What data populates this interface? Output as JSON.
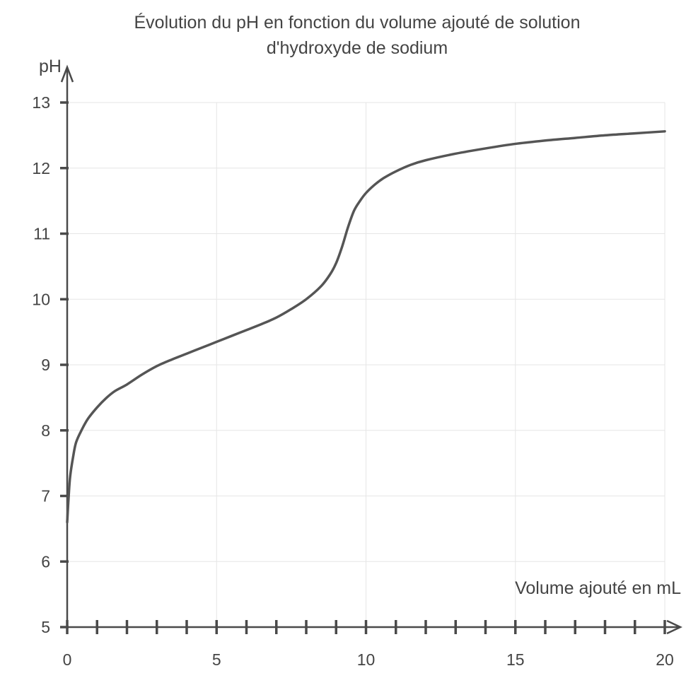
{
  "chart_data": {
    "type": "line",
    "title_line1": "Évolution du pH en fonction du volume ajouté de solution",
    "title_line2": "d'hydroxyde de sodium",
    "xlabel": "Volume ajouté en mL",
    "ylabel": "pH",
    "xlim": [
      0,
      20
    ],
    "ylim": [
      5,
      13
    ],
    "x_major_ticks": [
      0,
      5,
      10,
      15,
      20
    ],
    "x_minor_tick_step": 1,
    "y_ticks": [
      5,
      6,
      7,
      8,
      9,
      10,
      11,
      12,
      13
    ],
    "grid": true,
    "series": [
      {
        "color": "#555555",
        "points": [
          [
            0,
            6.6
          ],
          [
            0.05,
            7.0
          ],
          [
            0.1,
            7.3
          ],
          [
            0.2,
            7.6
          ],
          [
            0.3,
            7.82
          ],
          [
            0.5,
            8.02
          ],
          [
            0.7,
            8.18
          ],
          [
            1.0,
            8.35
          ],
          [
            1.3,
            8.49
          ],
          [
            1.6,
            8.6
          ],
          [
            2.0,
            8.7
          ],
          [
            2.5,
            8.85
          ],
          [
            3.0,
            8.98
          ],
          [
            3.5,
            9.08
          ],
          [
            4.0,
            9.17
          ],
          [
            4.5,
            9.26
          ],
          [
            5.0,
            9.35
          ],
          [
            5.5,
            9.44
          ],
          [
            6.0,
            9.53
          ],
          [
            6.5,
            9.62
          ],
          [
            7.0,
            9.72
          ],
          [
            7.5,
            9.85
          ],
          [
            8.0,
            10.0
          ],
          [
            8.5,
            10.2
          ],
          [
            8.8,
            10.38
          ],
          [
            9.0,
            10.55
          ],
          [
            9.2,
            10.8
          ],
          [
            9.4,
            11.1
          ],
          [
            9.6,
            11.35
          ],
          [
            9.8,
            11.5
          ],
          [
            10.0,
            11.62
          ],
          [
            10.3,
            11.75
          ],
          [
            10.6,
            11.85
          ],
          [
            11.0,
            11.95
          ],
          [
            11.5,
            12.05
          ],
          [
            12.0,
            12.12
          ],
          [
            13.0,
            12.22
          ],
          [
            14.0,
            12.3
          ],
          [
            15.0,
            12.37
          ],
          [
            16.0,
            12.42
          ],
          [
            17.0,
            12.46
          ],
          [
            18.0,
            12.5
          ],
          [
            19.0,
            12.53
          ],
          [
            20.0,
            12.56
          ]
        ]
      }
    ]
  }
}
